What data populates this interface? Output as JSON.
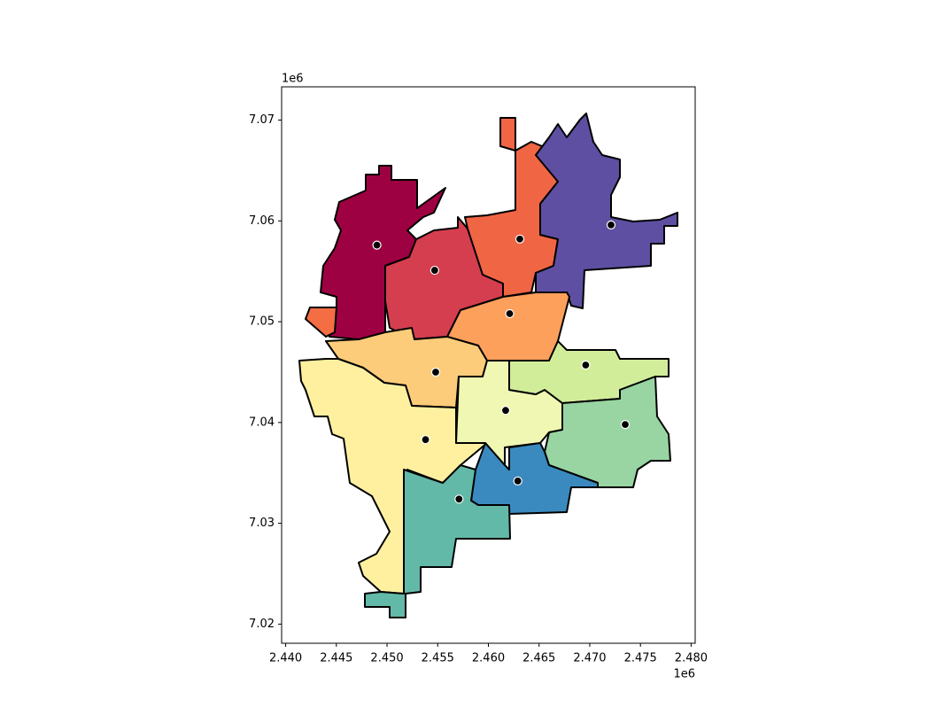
{
  "chart_data": {
    "type": "scatter",
    "x": [
      2.449,
      2.4547,
      2.4631,
      2.4721,
      2.4621,
      2.4548,
      2.4696,
      2.4617,
      2.4735,
      2.4538,
      2.4629,
      2.4571
    ],
    "y": [
      7.0576,
      7.0551,
      7.0582,
      7.0596,
      7.0508,
      7.045,
      7.0457,
      7.0412,
      7.0398,
      7.0383,
      7.0342,
      7.0324
    ],
    "color": "#000000",
    "edgecolor": "#ffffff",
    "xlim": [
      2.4396,
      2.4804
    ],
    "ylim": [
      7.0181,
      7.0733
    ],
    "xticks": [
      {
        "value": 2.44,
        "label": "2.440"
      },
      {
        "value": 2.445,
        "label": "2.445"
      },
      {
        "value": 2.45,
        "label": "2.450"
      },
      {
        "value": 2.455,
        "label": "2.455"
      },
      {
        "value": 2.46,
        "label": "2.460"
      },
      {
        "value": 2.465,
        "label": "2.465"
      },
      {
        "value": 2.47,
        "label": "2.470"
      },
      {
        "value": 2.475,
        "label": "2.475"
      },
      {
        "value": 2.48,
        "label": "2.480"
      }
    ],
    "yticks": [
      7.02,
      7.03,
      7.04,
      7.05,
      7.06,
      7.07
    ],
    "x_offset_label": "1e6",
    "y_offset_label": "1e6"
  }
}
